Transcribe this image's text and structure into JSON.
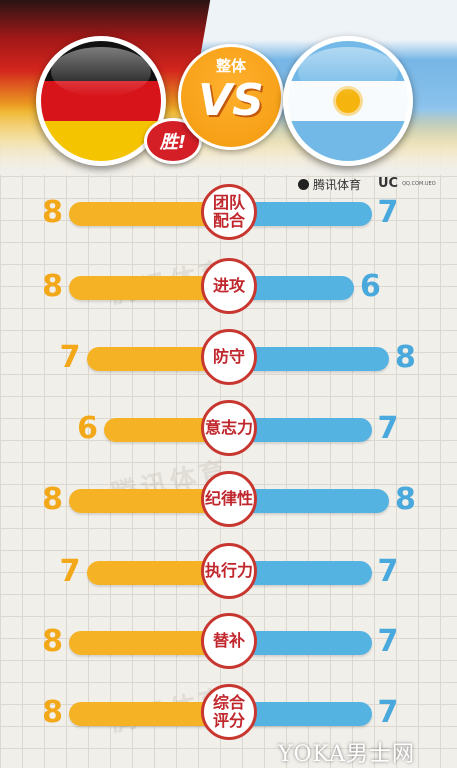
{
  "header": {
    "vs_title": "整体",
    "vs_text": "VS",
    "winner_badge": "胜!",
    "team_left_flag": "germany-flag",
    "team_right_flag": "argentina-flag"
  },
  "sources": {
    "tencent": "腾讯体育",
    "uc": "UC",
    "uc_sub": "QQ.COM.UEO"
  },
  "watermark": "腾讯体育",
  "colors": {
    "left_bar": "#f5b224",
    "right_bar": "#55b3e2",
    "badge_text": "#c0272d"
  },
  "categories": [
    {
      "label": "团队\n配合",
      "left": "8",
      "right": "7"
    },
    {
      "label": "进攻",
      "left": "8",
      "right": "6"
    },
    {
      "label": "防守",
      "left": "7",
      "right": "8"
    },
    {
      "label": "意志力",
      "left": "6",
      "right": "7"
    },
    {
      "label": "纪律性",
      "left": "8",
      "right": "8"
    },
    {
      "label": "执行力",
      "left": "7",
      "right": "7"
    },
    {
      "label": "替补",
      "left": "8",
      "right": "7"
    },
    {
      "label": "综合\n评分",
      "left": "8",
      "right": "7"
    }
  ],
  "footer": {
    "logo": "YOKA男士网"
  }
}
